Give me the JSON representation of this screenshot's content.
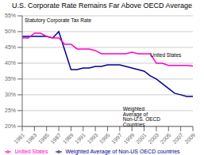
{
  "chart_data": {
    "type": "line",
    "title": "U.S. Corporate Rate Remains Far Above OECD Average",
    "y_label": "Statutory Corporate Tax Rate",
    "annotations": [
      {
        "text": "United States",
        "x": 2002,
        "y": 42.0
      },
      {
        "text": "Weighted Average of Non-U.S. OECD Countries",
        "x": 1997.5,
        "y": 26.0
      }
    ],
    "x": [
      1981,
      1982,
      1983,
      1984,
      1985,
      1986,
      1987,
      1988,
      1989,
      1990,
      1991,
      1992,
      1993,
      1994,
      1995,
      1996,
      1997,
      1998,
      1999,
      2000,
      2001,
      2002,
      2003,
      2004,
      2005,
      2006,
      2007,
      2008,
      2009
    ],
    "series": [
      {
        "name": "Weighted Average of Non-US OECD countries",
        "color": "#00008b",
        "values": [
          48.5,
          48.5,
          48.5,
          48.5,
          48.5,
          48.0,
          50.0,
          44.0,
          38.0,
          38.0,
          38.5,
          38.5,
          39.0,
          39.0,
          39.5,
          39.5,
          39.5,
          39.0,
          38.5,
          38.0,
          37.5,
          36.0,
          35.0,
          33.5,
          32.0,
          30.5,
          30.0,
          29.5,
          29.5
        ]
      },
      {
        "name": "United States",
        "color": "#ff00cc",
        "values": [
          48.0,
          48.0,
          49.5,
          49.5,
          48.5,
          48.0,
          48.0,
          46.0,
          46.0,
          44.5,
          44.5,
          44.5,
          44.0,
          43.0,
          43.0,
          43.0,
          43.0,
          43.0,
          43.5,
          43.0,
          43.0,
          43.0,
          40.0,
          40.0,
          39.3,
          39.3,
          39.3,
          39.3,
          39.1
        ]
      }
    ],
    "xlim": [
      1981,
      2009
    ],
    "xticks": [
      1981,
      1983,
      1985,
      1987,
      1989,
      1991,
      1993,
      1995,
      1997,
      1999,
      2001,
      2003,
      2005,
      2007,
      2009
    ],
    "ylim": [
      20,
      55
    ],
    "yticks": [
      {
        "value": 20,
        "label": "20%"
      },
      {
        "value": 25,
        "label": "25%"
      },
      {
        "value": 30,
        "label": "30%"
      },
      {
        "value": 35,
        "label": "35%"
      },
      {
        "value": 40,
        "label": "40%"
      },
      {
        "value": 45,
        "label": "45%"
      },
      {
        "value": 50,
        "label": "50%"
      },
      {
        "value": 55,
        "label": "55%"
      }
    ],
    "grid": true,
    "legend": "bottom"
  }
}
